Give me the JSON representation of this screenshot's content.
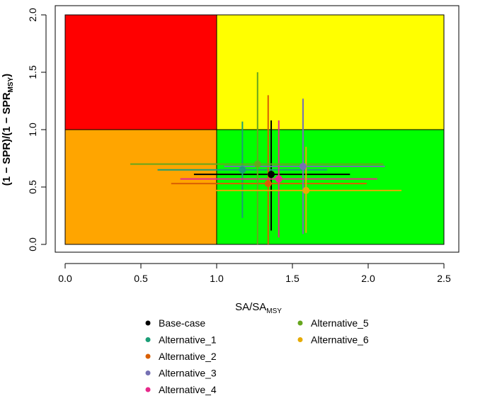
{
  "chart_data": {
    "type": "scatter",
    "title": "",
    "xlabel": "SA/SA",
    "xlabel_sub": "MSY",
    "ylabel_main": "(1 − SPR)/(1 − SPR",
    "ylabel_sub": "MSY",
    "ylabel_end": ")",
    "xlim": [
      0,
      2.5
    ],
    "ylim": [
      0,
      2.0
    ],
    "xticks": [
      0,
      0.5,
      1.0,
      1.5,
      2.0,
      2.5
    ],
    "xtick_labels": [
      "0.0",
      "0.5",
      "1.0",
      "1.5",
      "2.0",
      "2.5"
    ],
    "yticks": [
      0,
      0.5,
      1.0,
      1.5,
      2.0
    ],
    "ytick_labels": [
      "0.0",
      "0.5",
      "1.0",
      "1.5",
      "2.0"
    ],
    "grid": false,
    "legend_position": "bottom",
    "regions": [
      {
        "x": [
          0,
          1
        ],
        "y": [
          1,
          2
        ],
        "color": "#ff0000"
      },
      {
        "x": [
          1,
          2.5
        ],
        "y": [
          1,
          2
        ],
        "color": "#ffff00"
      },
      {
        "x": [
          0,
          1
        ],
        "y": [
          0,
          1
        ],
        "color": "#ffa500"
      },
      {
        "x": [
          1,
          2.5
        ],
        "y": [
          0,
          1
        ],
        "color": "#00ff00"
      }
    ],
    "series": [
      {
        "name": "Base-case",
        "color": "#000000",
        "x": 1.36,
        "y": 0.61,
        "x_range": [
          0.85,
          1.88
        ],
        "y_range": [
          0.12,
          1.08
        ]
      },
      {
        "name": "Alternative_1",
        "color": "#1b9e77",
        "x": 1.17,
        "y": 0.65,
        "x_range": [
          0.61,
          1.73
        ],
        "y_range": [
          0.23,
          1.07
        ]
      },
      {
        "name": "Alternative_2",
        "color": "#d95f02",
        "x": 1.34,
        "y": 0.53,
        "x_range": [
          0.7,
          1.99
        ],
        "y_range": [
          0.0,
          1.3
        ]
      },
      {
        "name": "Alternative_3",
        "color": "#7570b3",
        "x": 1.57,
        "y": 0.68,
        "x_range": [
          1.05,
          2.11
        ],
        "y_range": [
          0.09,
          1.27
        ]
      },
      {
        "name": "Alternative_4",
        "color": "#e7298a",
        "x": 1.41,
        "y": 0.57,
        "x_range": [
          0.76,
          2.06
        ],
        "y_range": [
          0.06,
          1.08
        ]
      },
      {
        "name": "Alternative_5",
        "color": "#66a61e",
        "x": 1.27,
        "y": 0.7,
        "x_range": [
          0.43,
          2.1
        ],
        "y_range": [
          0.0,
          1.5
        ]
      },
      {
        "name": "Alternative_6",
        "color": "#e6ab02",
        "x": 1.59,
        "y": 0.47,
        "x_range": [
          0.99,
          2.22
        ],
        "y_range": [
          0.1,
          0.85
        ]
      }
    ]
  }
}
